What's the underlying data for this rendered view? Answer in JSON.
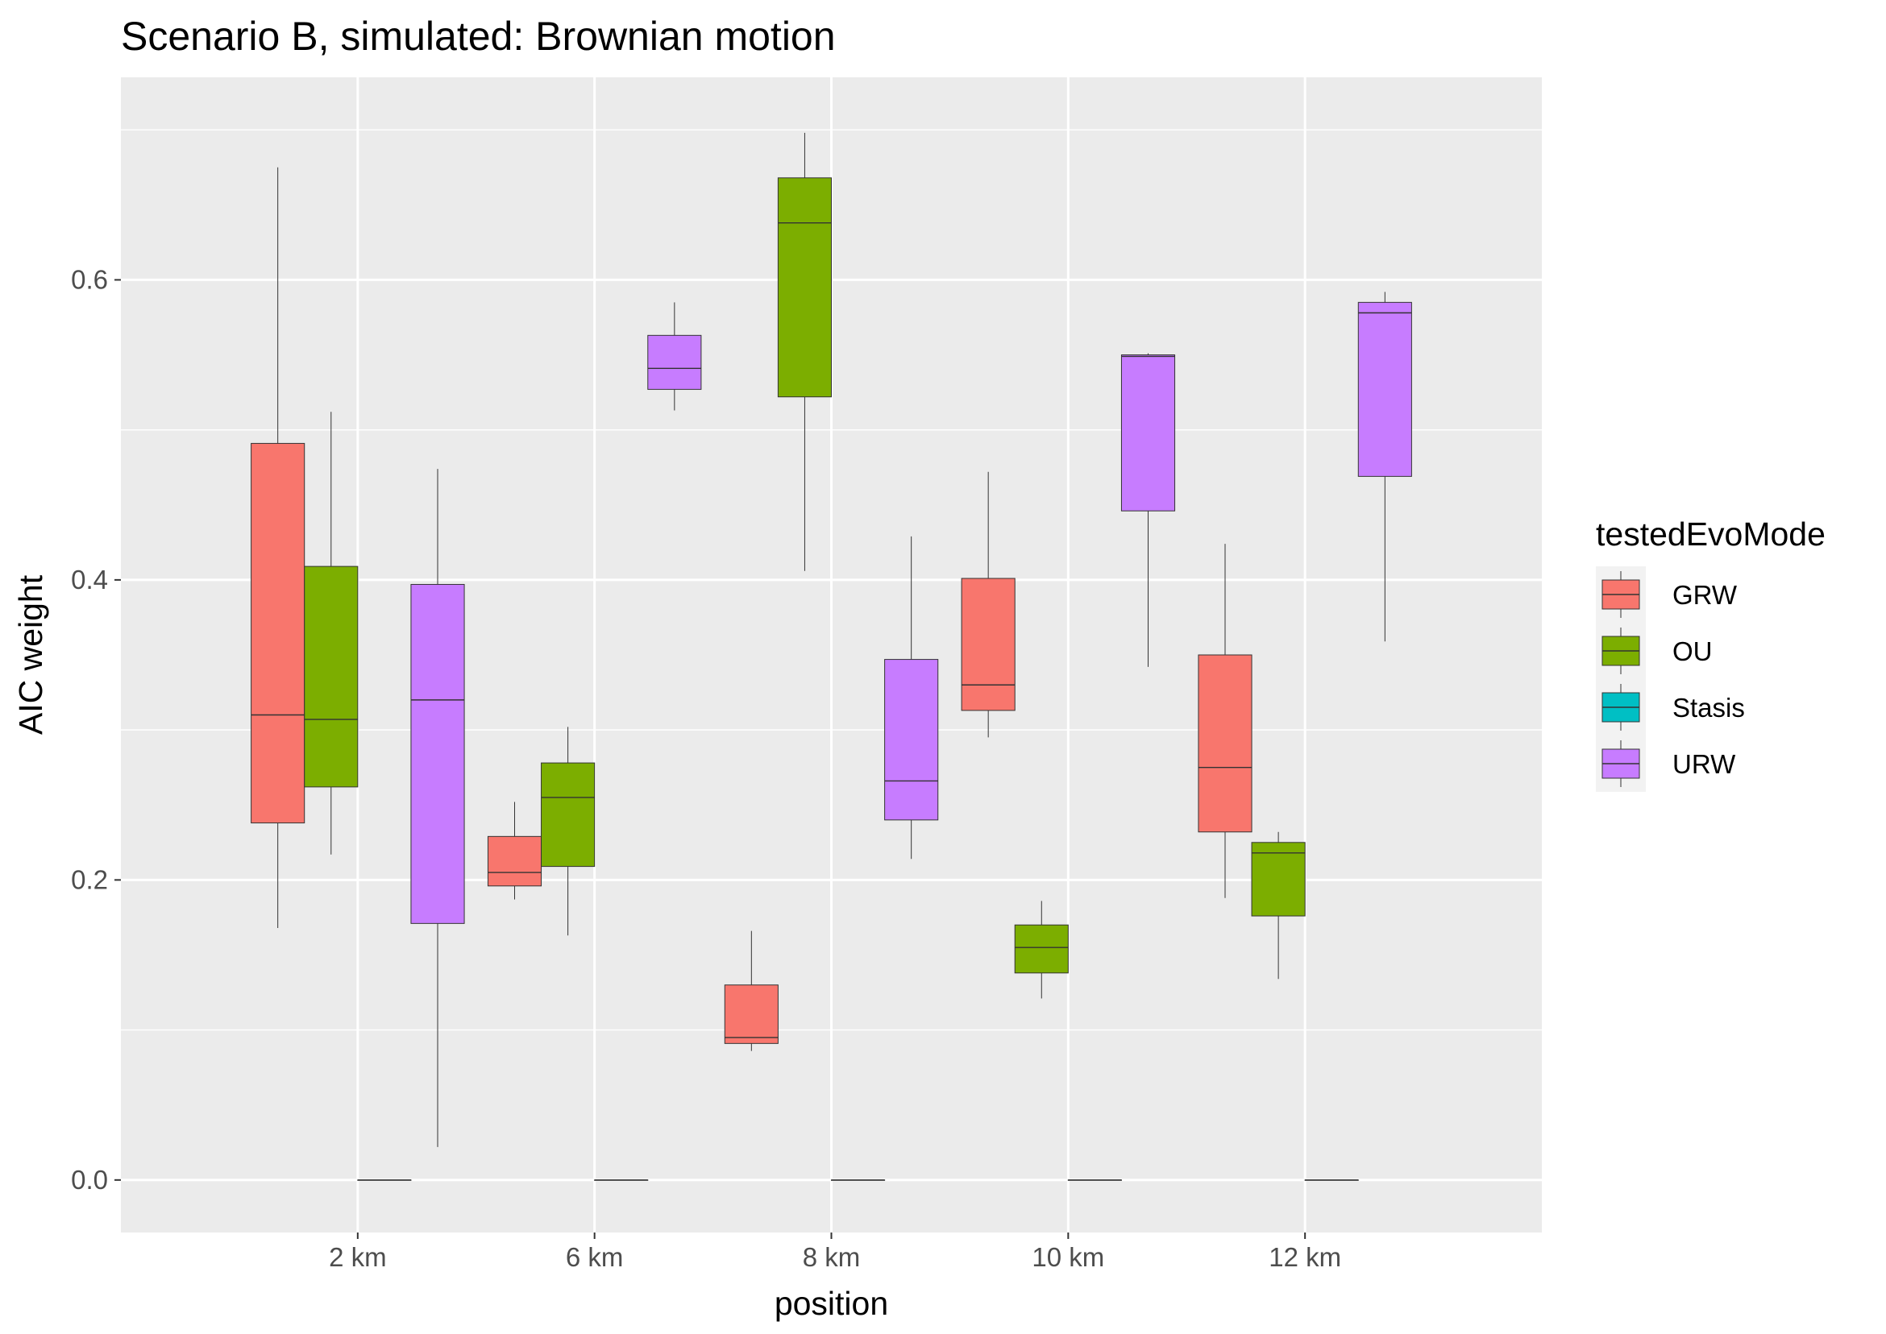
{
  "chart_data": {
    "type": "box",
    "title": "Scenario B, simulated: Brownian motion",
    "xlabel": "position",
    "ylabel": "AIC weight",
    "categories": [
      "2 km",
      "6 km",
      "8 km",
      "10 km",
      "12 km"
    ],
    "ylim": [
      -0.035,
      0.735
    ],
    "yticks": [
      0.0,
      0.2,
      0.4,
      0.6
    ],
    "ytick_labels": [
      "0.0",
      "0.2",
      "0.4",
      "0.6"
    ],
    "grid": true,
    "legend": {
      "title": "testedEvoMode",
      "placement": "right"
    },
    "series": [
      {
        "name": "GRW",
        "color": "#F8766D",
        "boxes": [
          {
            "min": 0.168,
            "q1": 0.238,
            "median": 0.31,
            "q3": 0.491,
            "max": 0.675
          },
          {
            "min": 0.187,
            "q1": 0.196,
            "median": 0.205,
            "q3": 0.229,
            "max": 0.252
          },
          {
            "min": 0.086,
            "q1": 0.091,
            "median": 0.095,
            "q3": 0.13,
            "max": 0.166
          },
          {
            "min": 0.295,
            "q1": 0.313,
            "median": 0.33,
            "q3": 0.401,
            "max": 0.472
          },
          {
            "min": 0.188,
            "q1": 0.232,
            "median": 0.275,
            "q3": 0.35,
            "max": 0.424
          }
        ]
      },
      {
        "name": "OU",
        "color": "#7CAE00",
        "boxes": [
          {
            "min": 0.217,
            "q1": 0.262,
            "median": 0.307,
            "q3": 0.409,
            "max": 0.512
          },
          {
            "min": 0.163,
            "q1": 0.209,
            "median": 0.255,
            "q3": 0.278,
            "max": 0.302
          },
          {
            "min": 0.406,
            "q1": 0.522,
            "median": 0.638,
            "q3": 0.668,
            "max": 0.698
          },
          {
            "min": 0.121,
            "q1": 0.138,
            "median": 0.155,
            "q3": 0.17,
            "max": 0.186
          },
          {
            "min": 0.134,
            "q1": 0.176,
            "median": 0.218,
            "q3": 0.225,
            "max": 0.232
          }
        ]
      },
      {
        "name": "Stasis",
        "color": "#00BFC4",
        "boxes": [
          {
            "min": 0.0,
            "q1": 0.0,
            "median": 0.0,
            "q3": 0.0,
            "max": 0.0
          },
          {
            "min": 0.0,
            "q1": 0.0,
            "median": 0.0,
            "q3": 0.0,
            "max": 0.0
          },
          {
            "min": 0.0,
            "q1": 0.0,
            "median": 0.0,
            "q3": 0.0,
            "max": 0.0
          },
          {
            "min": 0.0,
            "q1": 0.0,
            "median": 0.0,
            "q3": 0.0,
            "max": 0.0
          },
          {
            "min": 0.0,
            "q1": 0.0,
            "median": 0.0,
            "q3": 0.0,
            "max": 0.0
          }
        ]
      },
      {
        "name": "URW",
        "color": "#C77CFF",
        "boxes": [
          {
            "min": 0.022,
            "q1": 0.171,
            "median": 0.32,
            "q3": 0.397,
            "max": 0.474
          },
          {
            "min": 0.513,
            "q1": 0.527,
            "median": 0.541,
            "q3": 0.563,
            "max": 0.585
          },
          {
            "min": 0.214,
            "q1": 0.24,
            "median": 0.266,
            "q3": 0.347,
            "max": 0.429
          },
          {
            "min": 0.342,
            "q1": 0.446,
            "median": 0.549,
            "q3": 0.55,
            "max": 0.551
          },
          {
            "min": 0.359,
            "q1": 0.469,
            "median": 0.578,
            "q3": 0.585,
            "max": 0.592
          }
        ]
      }
    ]
  }
}
